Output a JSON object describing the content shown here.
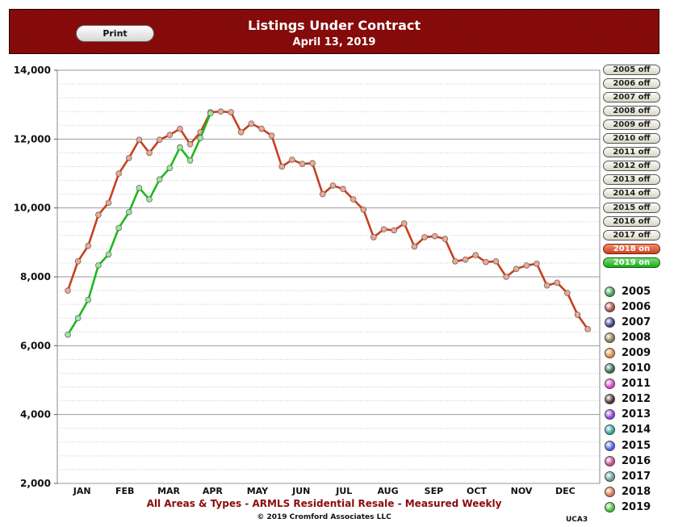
{
  "header": {
    "title": "Listings Under Contract",
    "subtitle": "April 13, 2019",
    "print_label": "Print",
    "bg_color": "#8b0b0b"
  },
  "year_toggles": [
    {
      "label": "2005 off",
      "state": "off"
    },
    {
      "label": "2006 off",
      "state": "off"
    },
    {
      "label": "2007 off",
      "state": "off"
    },
    {
      "label": "2008 off",
      "state": "off"
    },
    {
      "label": "2009 off",
      "state": "off"
    },
    {
      "label": "2010 off",
      "state": "off"
    },
    {
      "label": "2011 off",
      "state": "off"
    },
    {
      "label": "2012 off",
      "state": "off"
    },
    {
      "label": "2013 off",
      "state": "off"
    },
    {
      "label": "2014 off",
      "state": "off"
    },
    {
      "label": "2015 off",
      "state": "off"
    },
    {
      "label": "2016 off",
      "state": "off"
    },
    {
      "label": "2017 off",
      "state": "off"
    },
    {
      "label": "2018 on",
      "state": "on18"
    },
    {
      "label": "2019 on",
      "state": "on19"
    }
  ],
  "legend": [
    {
      "label": "2005",
      "color": "#3fa04a"
    },
    {
      "label": "2006",
      "color": "#b24a4a"
    },
    {
      "label": "2007",
      "color": "#3a3a8c"
    },
    {
      "label": "2008",
      "color": "#8c7a4a"
    },
    {
      "label": "2009",
      "color": "#e08a3a"
    },
    {
      "label": "2010",
      "color": "#2f6e57"
    },
    {
      "label": "2011",
      "color": "#e040d0"
    },
    {
      "label": "2012",
      "color": "#4a3030"
    },
    {
      "label": "2013",
      "color": "#8a40e0"
    },
    {
      "label": "2014",
      "color": "#2ea89a"
    },
    {
      "label": "2015",
      "color": "#5060e8"
    },
    {
      "label": "2016",
      "color": "#c84a8a"
    },
    {
      "label": "2017",
      "color": "#6e9a9a"
    },
    {
      "label": "2018",
      "color": "#e07050"
    },
    {
      "label": "2019",
      "color": "#3ec43e"
    }
  ],
  "caption": "All Areas & Types - ARMLS Residential Resale - Measured Weekly",
  "copyright": "© 2019 Cromford Associates LLC",
  "code": "UCA3",
  "chart_data": {
    "type": "line",
    "ylim": [
      2000,
      14000
    ],
    "y_ticks": [
      2000,
      4000,
      6000,
      8000,
      10000,
      12000,
      14000
    ],
    "y_tick_labels": [
      "2,000",
      "4,000",
      "6,000",
      "8,000",
      "10,000",
      "12,000",
      "14,000"
    ],
    "x_labels": [
      "JAN",
      "FEB",
      "MAR",
      "APR",
      "MAY",
      "JUN",
      "JUL",
      "AUG",
      "SEP",
      "OCT",
      "NOV",
      "DEC"
    ],
    "x_range_weeks": [
      1,
      53
    ],
    "grid": true,
    "series": [
      {
        "name": "2018",
        "color": "#c8401e",
        "week": [
          1,
          2,
          3,
          4,
          5,
          6,
          7,
          8,
          9,
          10,
          11,
          12,
          13,
          14,
          15,
          16,
          17,
          18,
          19,
          20,
          21,
          22,
          23,
          24,
          25,
          26,
          27,
          28,
          29,
          30,
          31,
          32,
          33,
          34,
          35,
          36,
          37,
          38,
          39,
          40,
          41,
          42,
          43,
          44,
          45,
          46,
          47,
          48,
          49,
          50,
          51,
          52
        ],
        "values": [
          7600,
          8450,
          8900,
          9800,
          10150,
          11000,
          11450,
          11980,
          11600,
          11980,
          12120,
          12300,
          11850,
          12200,
          12780,
          12800,
          12780,
          12200,
          12450,
          12300,
          12100,
          11200,
          11400,
          11280,
          11300,
          10400,
          10650,
          10550,
          10250,
          9950,
          9150,
          9380,
          9350,
          9550,
          8880,
          9150,
          9180,
          9100,
          8450,
          8500,
          8630,
          8430,
          8450,
          8000,
          8230,
          8330,
          8380,
          7750,
          7830,
          7530,
          6900,
          6480
        ]
      },
      {
        "name": "2019",
        "color": "#1fb81f",
        "week": [
          1,
          2,
          3,
          4,
          5,
          6,
          7,
          8,
          9,
          10,
          11,
          12,
          13,
          14,
          15
        ],
        "values": [
          6320,
          6800,
          7330,
          8330,
          8650,
          9420,
          9880,
          10580,
          10250,
          10830,
          11160,
          11760,
          11380,
          12030,
          12750
        ]
      }
    ]
  }
}
